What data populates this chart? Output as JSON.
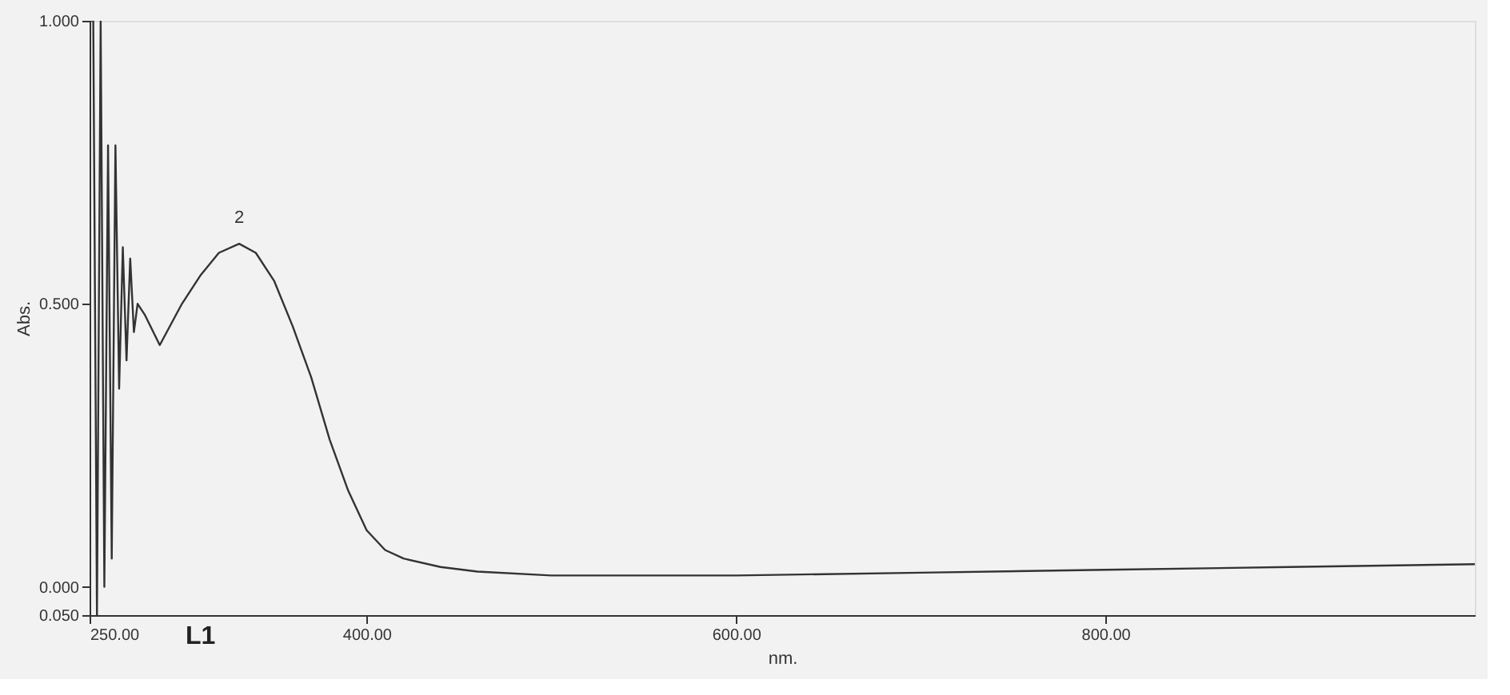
{
  "chart_data": {
    "type": "line",
    "xlabel": "nm.",
    "ylabel": "Abs.",
    "x": [
      250,
      252,
      254,
      256,
      258,
      260,
      262,
      264,
      266,
      268,
      270,
      272,
      274,
      276,
      280,
      288,
      300,
      310,
      320,
      331,
      340,
      350,
      360,
      370,
      380,
      390,
      400,
      410,
      420,
      440,
      460,
      500,
      600,
      700,
      800,
      900,
      1000
    ],
    "series": [
      {
        "color": "#333333",
        "values": [
          1.0,
          1.0,
          -0.05,
          1.0,
          0.0,
          0.78,
          0.05,
          0.78,
          0.35,
          0.6,
          0.4,
          0.58,
          0.45,
          0.5,
          0.48,
          0.427,
          0.5,
          0.55,
          0.59,
          0.606,
          0.59,
          0.54,
          0.46,
          0.37,
          0.26,
          0.17,
          0.1,
          0.065,
          0.05,
          0.035,
          0.027,
          0.02,
          0.02,
          0.025,
          0.03,
          0.035,
          0.04
        ]
      }
    ],
    "xlim": [
      250,
      1000
    ],
    "xticks": [
      {
        "value": 250,
        "label": "250.00"
      },
      {
        "value": 400,
        "label": "400.00"
      },
      {
        "value": 600,
        "label": "600.00"
      },
      {
        "value": 800,
        "label": "800.00"
      }
    ],
    "ylim": [
      -0.05,
      1.0
    ],
    "yticks": [
      {
        "value": -0.05,
        "label": "0.050"
      },
      {
        "value": 0,
        "label": "0.000"
      },
      {
        "value": 0.5,
        "label": "0.500"
      },
      {
        "value": 1.0,
        "label": "1.000"
      }
    ],
    "annotations": [
      {
        "text": "2",
        "x": 331,
        "y": 0.606
      },
      "L1"
    ],
    "grid": false,
    "marker": "none",
    "line_style": "solid"
  }
}
